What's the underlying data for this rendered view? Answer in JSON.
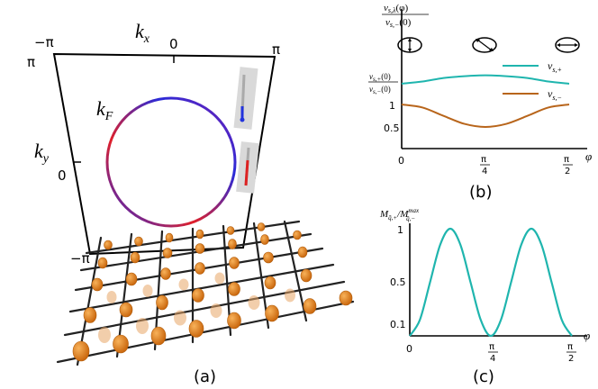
{
  "panels": {
    "a": {
      "label": "(a)",
      "axis_kx": "k",
      "axis_kx_sub": "x",
      "axis_ky": "k",
      "axis_ky_sub": "y",
      "fermi_label": "k",
      "fermi_label_sub": "F",
      "kx_ticks": [
        "−π",
        "0",
        "π"
      ],
      "ky_ticks": [
        "π",
        "0",
        "−π"
      ],
      "colors": {
        "ring_red": "#e0202a",
        "ring_blue": "#2a2ad8",
        "lattice": "#222222",
        "atom": "#e07a10"
      }
    },
    "b": {
      "label": "(b)",
      "y_title_num": "v",
      "y_title_num_sub": "s,λ",
      "y_title_num_arg": "(φ)",
      "y_title_den": "v",
      "y_title_den_sub": "s,−",
      "y_title_den_arg": "(0)",
      "y_tick_ratio_num": "v",
      "y_tick_ratio_num_sub": "s,+",
      "y_tick_ratio_num_arg": "(0)",
      "y_tick_ratio_den": "v",
      "y_tick_ratio_den_sub": "s,−",
      "y_tick_ratio_den_arg": "(0)",
      "y_ticks": [
        "1",
        "0.5"
      ],
      "x_var": "φ",
      "x_ticks": [
        "0",
        "π",
        "4",
        "π",
        "2"
      ],
      "legend_plus": "v",
      "legend_plus_sub": "s,+",
      "legend_minus": "v",
      "legend_minus_sub": "s,−",
      "colors": {
        "plus": "#1fb5ae",
        "minus": "#b8651b"
      }
    },
    "c": {
      "label": "(c)",
      "y_title": "M",
      "y_title_sub": "q̄,+",
      "y_title_den": "/M",
      "y_title_den_sup": "max",
      "y_title_den_sub": "q̄,−",
      "y_ticks": [
        "1",
        "0.5",
        "0.1"
      ],
      "x_var": "φ",
      "x_ticks": [
        "0",
        "π",
        "4",
        "π",
        "2"
      ],
      "colors": {
        "curve": "#1fb5ae"
      }
    }
  },
  "chart_data": [
    {
      "type": "line",
      "panel": "b",
      "x_unit": "rad",
      "xlim": [
        0,
        1.5708
      ],
      "series": [
        {
          "name": "v_{s,+}",
          "x": [
            0,
            0.1963,
            0.3927,
            0.589,
            0.7854,
            0.9817,
            1.1781,
            1.3744,
            1.5708
          ],
          "values": [
            1.47,
            1.52,
            1.6,
            1.64,
            1.66,
            1.64,
            1.6,
            1.52,
            1.47
          ]
        },
        {
          "name": "v_{s,−}",
          "x": [
            0,
            0.1963,
            0.3927,
            0.589,
            0.7854,
            0.9817,
            1.1781,
            1.3744,
            1.5708
          ],
          "values": [
            1.0,
            0.93,
            0.74,
            0.56,
            0.49,
            0.56,
            0.74,
            0.93,
            1.0
          ]
        }
      ],
      "ylim": [
        0,
        2.0
      ]
    },
    {
      "type": "line",
      "panel": "c",
      "x_unit": "rad",
      "xlim": [
        0,
        1.5708
      ],
      "ylim": [
        0,
        1.0
      ],
      "series": [
        {
          "name": "M",
          "x": [
            0,
            0.0982,
            0.1963,
            0.2945,
            0.3927,
            0.4909,
            0.589,
            0.6872,
            0.7854,
            0.8836,
            0.9817,
            1.0799,
            1.1781,
            1.2763,
            1.3744,
            1.4726,
            1.5708
          ],
          "values": [
            0.0,
            0.15,
            0.5,
            0.85,
            1.0,
            0.85,
            0.5,
            0.15,
            0.0,
            0.15,
            0.5,
            0.85,
            1.0,
            0.85,
            0.5,
            0.15,
            0.0
          ]
        }
      ]
    }
  ]
}
